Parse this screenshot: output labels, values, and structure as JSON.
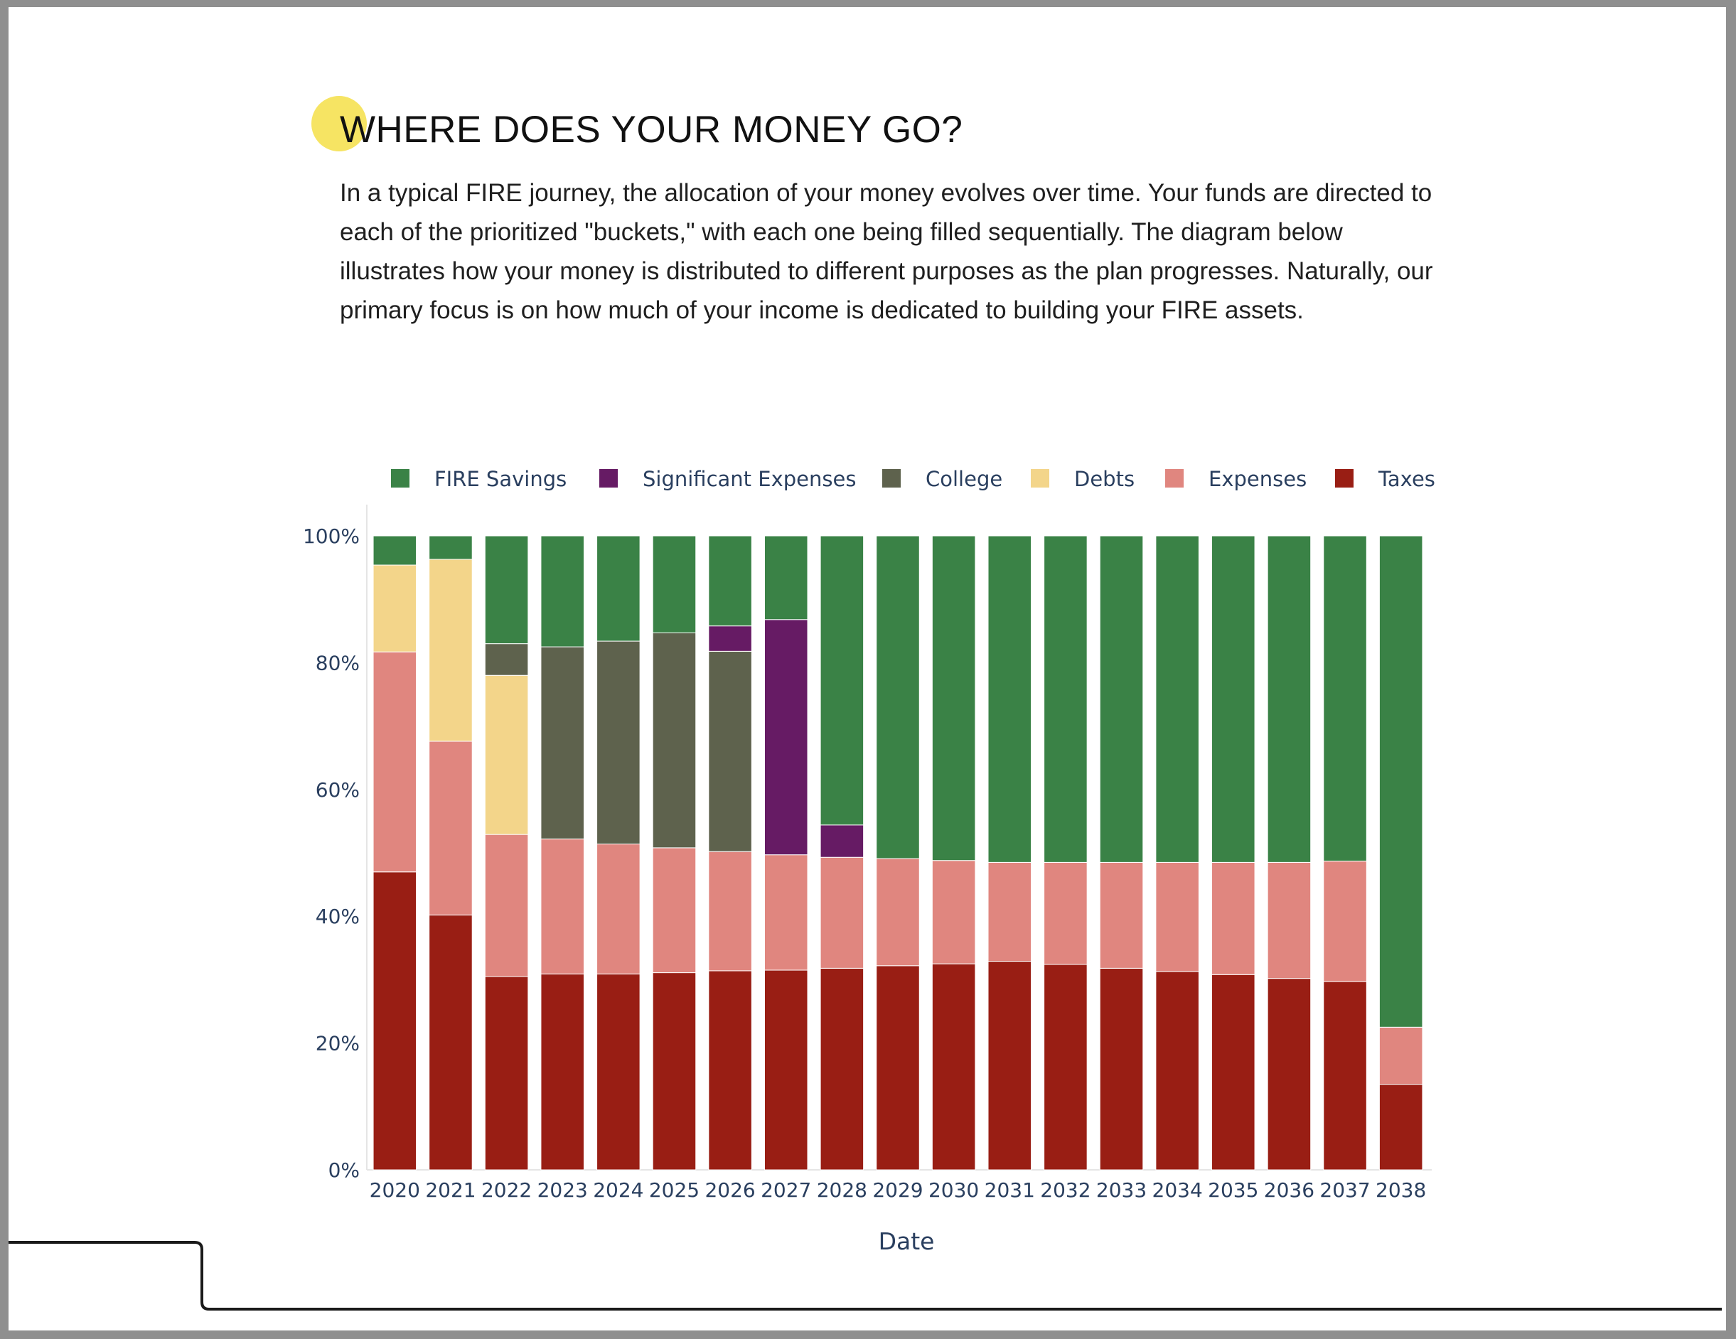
{
  "page": {
    "title": "WHERE DOES YOUR MONEY GO?",
    "intro": "In a typical FIRE journey, the allocation of your money evolves over time. Your funds are directed to each of the prioritized \"buckets,\" with each one being filled sequentially. The diagram below illustrates how your money is distributed to different purposes as the plan progresses. Naturally, our primary focus is on how much of your income is dedicated to building your FIRE assets.",
    "accent_color": "#f6e463"
  },
  "chart_data": {
    "type": "bar",
    "stacked": true,
    "categories": [
      "2020",
      "2021",
      "2022",
      "2023",
      "2024",
      "2025",
      "2026",
      "2027",
      "2028",
      "2029",
      "2030",
      "2031",
      "2032",
      "2033",
      "2034",
      "2035",
      "2036",
      "2037",
      "2038"
    ],
    "xlabel": "Date",
    "ylabel": "",
    "ylim": [
      0,
      100
    ],
    "y_ticks": [
      0,
      20,
      40,
      60,
      80,
      100
    ],
    "y_tick_labels": [
      "0%",
      "20%",
      "40%",
      "60%",
      "80%",
      "100%"
    ],
    "legend_position": "top",
    "series": [
      {
        "name": "Taxes",
        "color": "#991e14",
        "values": [
          47,
          40.2,
          30.5,
          30.9,
          30.9,
          31.1,
          31.4,
          31.5,
          31.8,
          32.2,
          32.5,
          32.9,
          32.4,
          31.8,
          31.3,
          30.8,
          30.2,
          29.7,
          13.5
        ]
      },
      {
        "name": "Expenses",
        "color": "#e0867f",
        "values": [
          34.7,
          27.4,
          22.4,
          21.3,
          20.5,
          19.7,
          18.8,
          18.2,
          17.5,
          16.9,
          16.3,
          15.6,
          16.1,
          16.7,
          17.2,
          17.7,
          18.3,
          19.0,
          9.0
        ]
      },
      {
        "name": "Debts",
        "color": "#f3d58a",
        "values": [
          13.7,
          28.7,
          25.1,
          0,
          0,
          0,
          0,
          0,
          0,
          0,
          0,
          0,
          0,
          0,
          0,
          0,
          0,
          0,
          0
        ]
      },
      {
        "name": "College",
        "color": "#5e624d",
        "values": [
          0,
          0,
          5.0,
          30.3,
          32.0,
          33.9,
          31.6,
          0,
          0,
          0,
          0,
          0,
          0,
          0,
          0,
          0,
          0,
          0,
          0
        ]
      },
      {
        "name": "Significant Expenses",
        "color": "#661b64",
        "values": [
          0,
          0,
          0,
          0,
          0,
          0,
          4.0,
          37.1,
          5.1,
          0,
          0,
          0,
          0,
          0,
          0,
          0,
          0,
          0,
          0
        ]
      },
      {
        "name": "FIRE Savings",
        "color": "#3a8246",
        "values": [
          4.6,
          3.7,
          17.0,
          17.5,
          16.6,
          15.3,
          14.2,
          13.2,
          45.6,
          50.9,
          51.2,
          51.5,
          51.5,
          51.5,
          51.5,
          51.5,
          51.5,
          51.3,
          77.5
        ]
      }
    ],
    "legend_order": [
      "FIRE Savings",
      "Significant Expenses",
      "College",
      "Debts",
      "Expenses",
      "Taxes"
    ]
  }
}
